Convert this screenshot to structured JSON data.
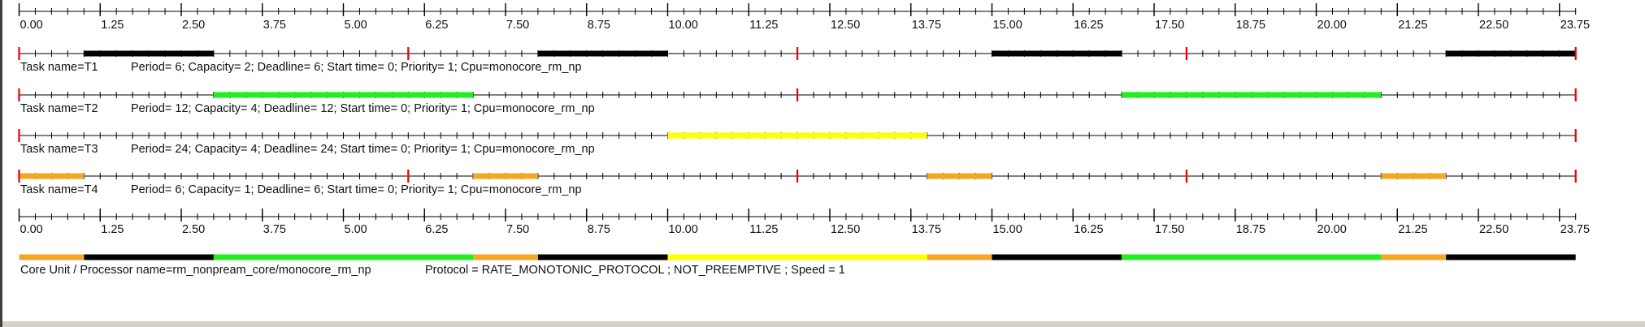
{
  "scale": {
    "ticks": [
      "0.00",
      "1.25",
      "2.50",
      "3.75",
      "5.00",
      "6.25",
      "7.50",
      "8.75",
      "10.00",
      "11.25",
      "12.50",
      "13.75",
      "15.00",
      "16.25",
      "17.50",
      "18.75",
      "20.00",
      "21.25",
      "22.50",
      "23.75"
    ],
    "max": 24,
    "minor_step": 0.25
  },
  "tasks": [
    {
      "name": "Task name=T1",
      "info": "Period= 6; Capacity= 2; Deadline= 6; Start time= 0; Priority= 1; Cpu=monocore_rm_np",
      "color": "#000000",
      "period": 6,
      "run_segments": [
        [
          1,
          3
        ],
        [
          8,
          10
        ],
        [
          15,
          17
        ],
        [
          22,
          24
        ]
      ]
    },
    {
      "name": "Task name=T2",
      "info": "Period= 12; Capacity= 4; Deadline= 12; Start time= 0; Priority= 1; Cpu=monocore_rm_np",
      "color": "#22ee22",
      "period": 12,
      "run_segments": [
        [
          3,
          7
        ],
        [
          17,
          21
        ]
      ]
    },
    {
      "name": "Task name=T3",
      "info": "Period= 24; Capacity= 4; Deadline= 24; Start time= 0; Priority= 1; Cpu=monocore_rm_np",
      "color": "#ffff00",
      "period": 24,
      "run_segments": [
        [
          10,
          14
        ]
      ]
    },
    {
      "name": "Task name=T4",
      "info": "Period= 6; Capacity= 1; Deadline= 6; Start time= 0; Priority= 1; Cpu=monocore_rm_np",
      "color": "#f5a623",
      "period": 6,
      "run_segments": [
        [
          0,
          1
        ],
        [
          7,
          8
        ],
        [
          14,
          15
        ],
        [
          21,
          22
        ]
      ]
    }
  ],
  "processor": {
    "name": "Core Unit / Processor name=rm_nonpream_core/monocore_rm_np",
    "protocol": "Protocol = RATE_MONOTONIC_PROTOCOL ; NOT_PREEMPTIVE ; Speed =  1"
  },
  "colors": {
    "axis": "#000000",
    "release_marker": "#ee0000",
    "background": "#ffffff",
    "frame": "#d4d0c8"
  }
}
